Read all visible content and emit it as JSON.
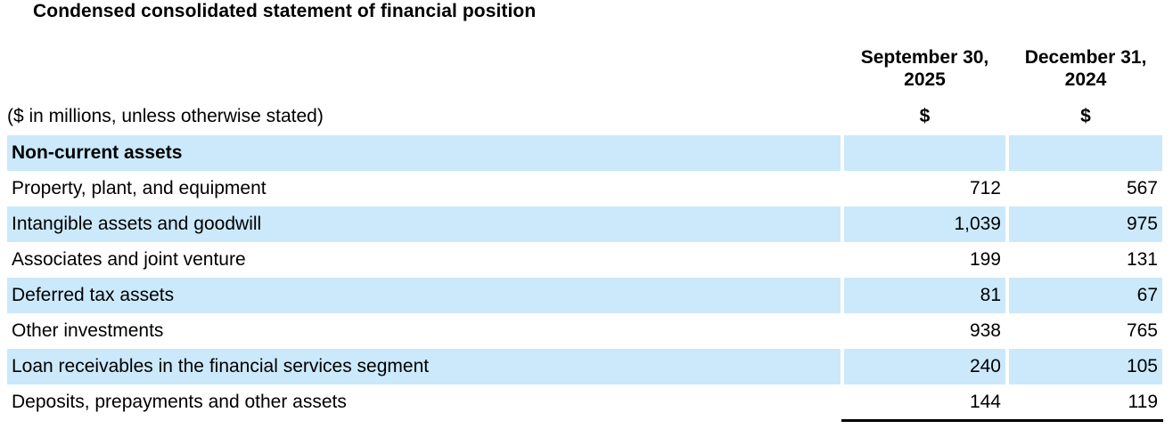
{
  "title": "Condensed consolidated statement of financial position",
  "units_note": "($ in millions, unless otherwise stated)",
  "section_header": "Non-current assets",
  "columns": [
    {
      "date_line1": "September 30,",
      "date_line2": "2025",
      "currency_symbol": "$"
    },
    {
      "date_line1": "December 31,",
      "date_line2": "2024",
      "currency_symbol": "$"
    }
  ],
  "rows": [
    {
      "label": "Property, plant, and equipment",
      "sep30_2025": "712",
      "dec31_2024": "567"
    },
    {
      "label": "Intangible assets and goodwill",
      "sep30_2025": "1,039",
      "dec31_2024": "975"
    },
    {
      "label": "Associates and joint venture",
      "sep30_2025": "199",
      "dec31_2024": "131"
    },
    {
      "label": "Deferred tax assets",
      "sep30_2025": "81",
      "dec31_2024": "67"
    },
    {
      "label": "Other investments",
      "sep30_2025": "938",
      "dec31_2024": "765"
    },
    {
      "label": "Loan receivables in the financial services segment",
      "sep30_2025": "240",
      "dec31_2024": "105"
    },
    {
      "label": "Deposits, prepayments and other assets",
      "sep30_2025": "144",
      "dec31_2024": "119"
    }
  ],
  "colors": {
    "row_highlight": "#cbe9fa",
    "text": "#000000",
    "rule": "#000000"
  }
}
